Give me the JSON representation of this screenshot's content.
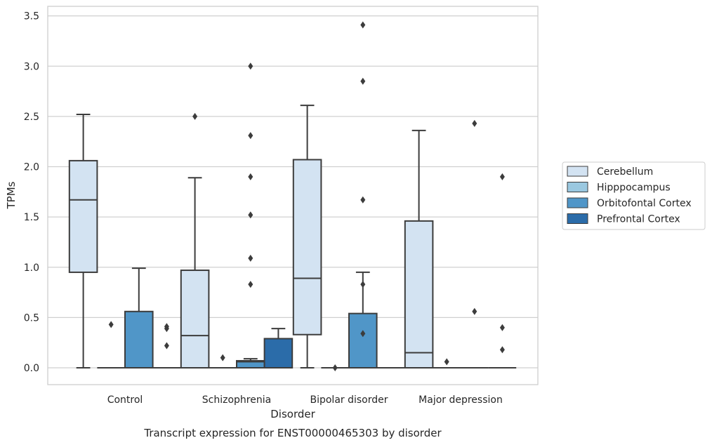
{
  "chart_data": {
    "type": "box",
    "caption": "Transcript expression for ENST00000465303 by disorder",
    "xlabel": "Disorder",
    "ylabel": "TPMs",
    "ylim": [
      -0.17,
      3.59
    ],
    "yticks": [
      0.0,
      0.5,
      1.0,
      1.5,
      2.0,
      2.5,
      3.0,
      3.5
    ],
    "ytick_labels": [
      "0.0",
      "0.5",
      "1.0",
      "1.5",
      "2.0",
      "2.5",
      "3.0",
      "3.5"
    ],
    "grid": true,
    "legend_position": "outside right",
    "categories": [
      "Control",
      "Schizophrenia",
      "Bipolar disorder",
      "Major depression"
    ],
    "series": [
      {
        "name": "Cerebellum",
        "color": "#d3e3f2",
        "boxes": [
          {
            "whislo": 0.0,
            "q1": 0.95,
            "med": 1.67,
            "q3": 2.06,
            "whishi": 2.52,
            "fliers": []
          },
          {
            "whislo": 0.0,
            "q1": 0.0,
            "med": 0.32,
            "q3": 0.97,
            "whishi": 1.89,
            "fliers": [
              2.5
            ]
          },
          {
            "whislo": 0.0,
            "q1": 0.33,
            "med": 0.89,
            "q3": 2.07,
            "whishi": 2.61,
            "fliers": []
          },
          {
            "whislo": 0.0,
            "q1": 0.0,
            "med": 0.15,
            "q3": 1.46,
            "whishi": 2.36,
            "fliers": []
          }
        ]
      },
      {
        "name": "Hipppocampus",
        "color": "#9ac8e0",
        "boxes": [
          {
            "whislo": 0.0,
            "q1": 0.0,
            "med": 0.0,
            "q3": 0.0,
            "whishi": 0.0,
            "fliers": [
              0.43
            ]
          },
          {
            "whislo": 0.0,
            "q1": 0.0,
            "med": 0.0,
            "q3": 0.0,
            "whishi": 0.0,
            "fliers": [
              0.1
            ]
          },
          {
            "whislo": 0.0,
            "q1": 0.0,
            "med": 0.0,
            "q3": 0.0,
            "whishi": 0.0,
            "fliers": [
              0.0
            ]
          },
          {
            "whislo": 0.0,
            "q1": 0.0,
            "med": 0.0,
            "q3": 0.0,
            "whishi": 0.0,
            "fliers": [
              0.06
            ]
          }
        ]
      },
      {
        "name": "Orbitofontal Cortex",
        "color": "#5096c8",
        "boxes": [
          {
            "whislo": 0.0,
            "q1": 0.0,
            "med": 0.0,
            "q3": 0.56,
            "whishi": 0.99,
            "fliers": []
          },
          {
            "whislo": 0.0,
            "q1": 0.0,
            "med": 0.06,
            "q3": 0.07,
            "whishi": 0.09,
            "fliers": [
              3.0,
              2.31,
              1.9,
              1.52,
              1.09,
              0.83
            ]
          },
          {
            "whislo": 0.0,
            "q1": 0.0,
            "med": 0.0,
            "q3": 0.54,
            "whishi": 0.95,
            "fliers": [
              3.41,
              2.85,
              1.67,
              0.83,
              0.34
            ]
          },
          {
            "whislo": 0.0,
            "q1": 0.0,
            "med": 0.0,
            "q3": 0.0,
            "whishi": 0.0,
            "fliers": [
              2.43,
              0.56
            ]
          }
        ]
      },
      {
        "name": "Prefrontal Cortex",
        "color": "#2b6ca9",
        "boxes": [
          {
            "whislo": 0.0,
            "q1": 0.0,
            "med": 0.0,
            "q3": 0.0,
            "whishi": 0.0,
            "fliers": [
              0.41,
              0.39,
              0.22
            ]
          },
          {
            "whislo": 0.0,
            "q1": 0.0,
            "med": 0.0,
            "q3": 0.29,
            "whishi": 0.39,
            "fliers": []
          },
          {
            "whislo": 0.0,
            "q1": 0.0,
            "med": 0.0,
            "q3": 0.0,
            "whishi": 0.0,
            "fliers": []
          },
          {
            "whislo": 0.0,
            "q1": 0.0,
            "med": 0.0,
            "q3": 0.0,
            "whishi": 0.0,
            "fliers": [
              1.9,
              0.4,
              0.18
            ]
          }
        ]
      }
    ]
  }
}
